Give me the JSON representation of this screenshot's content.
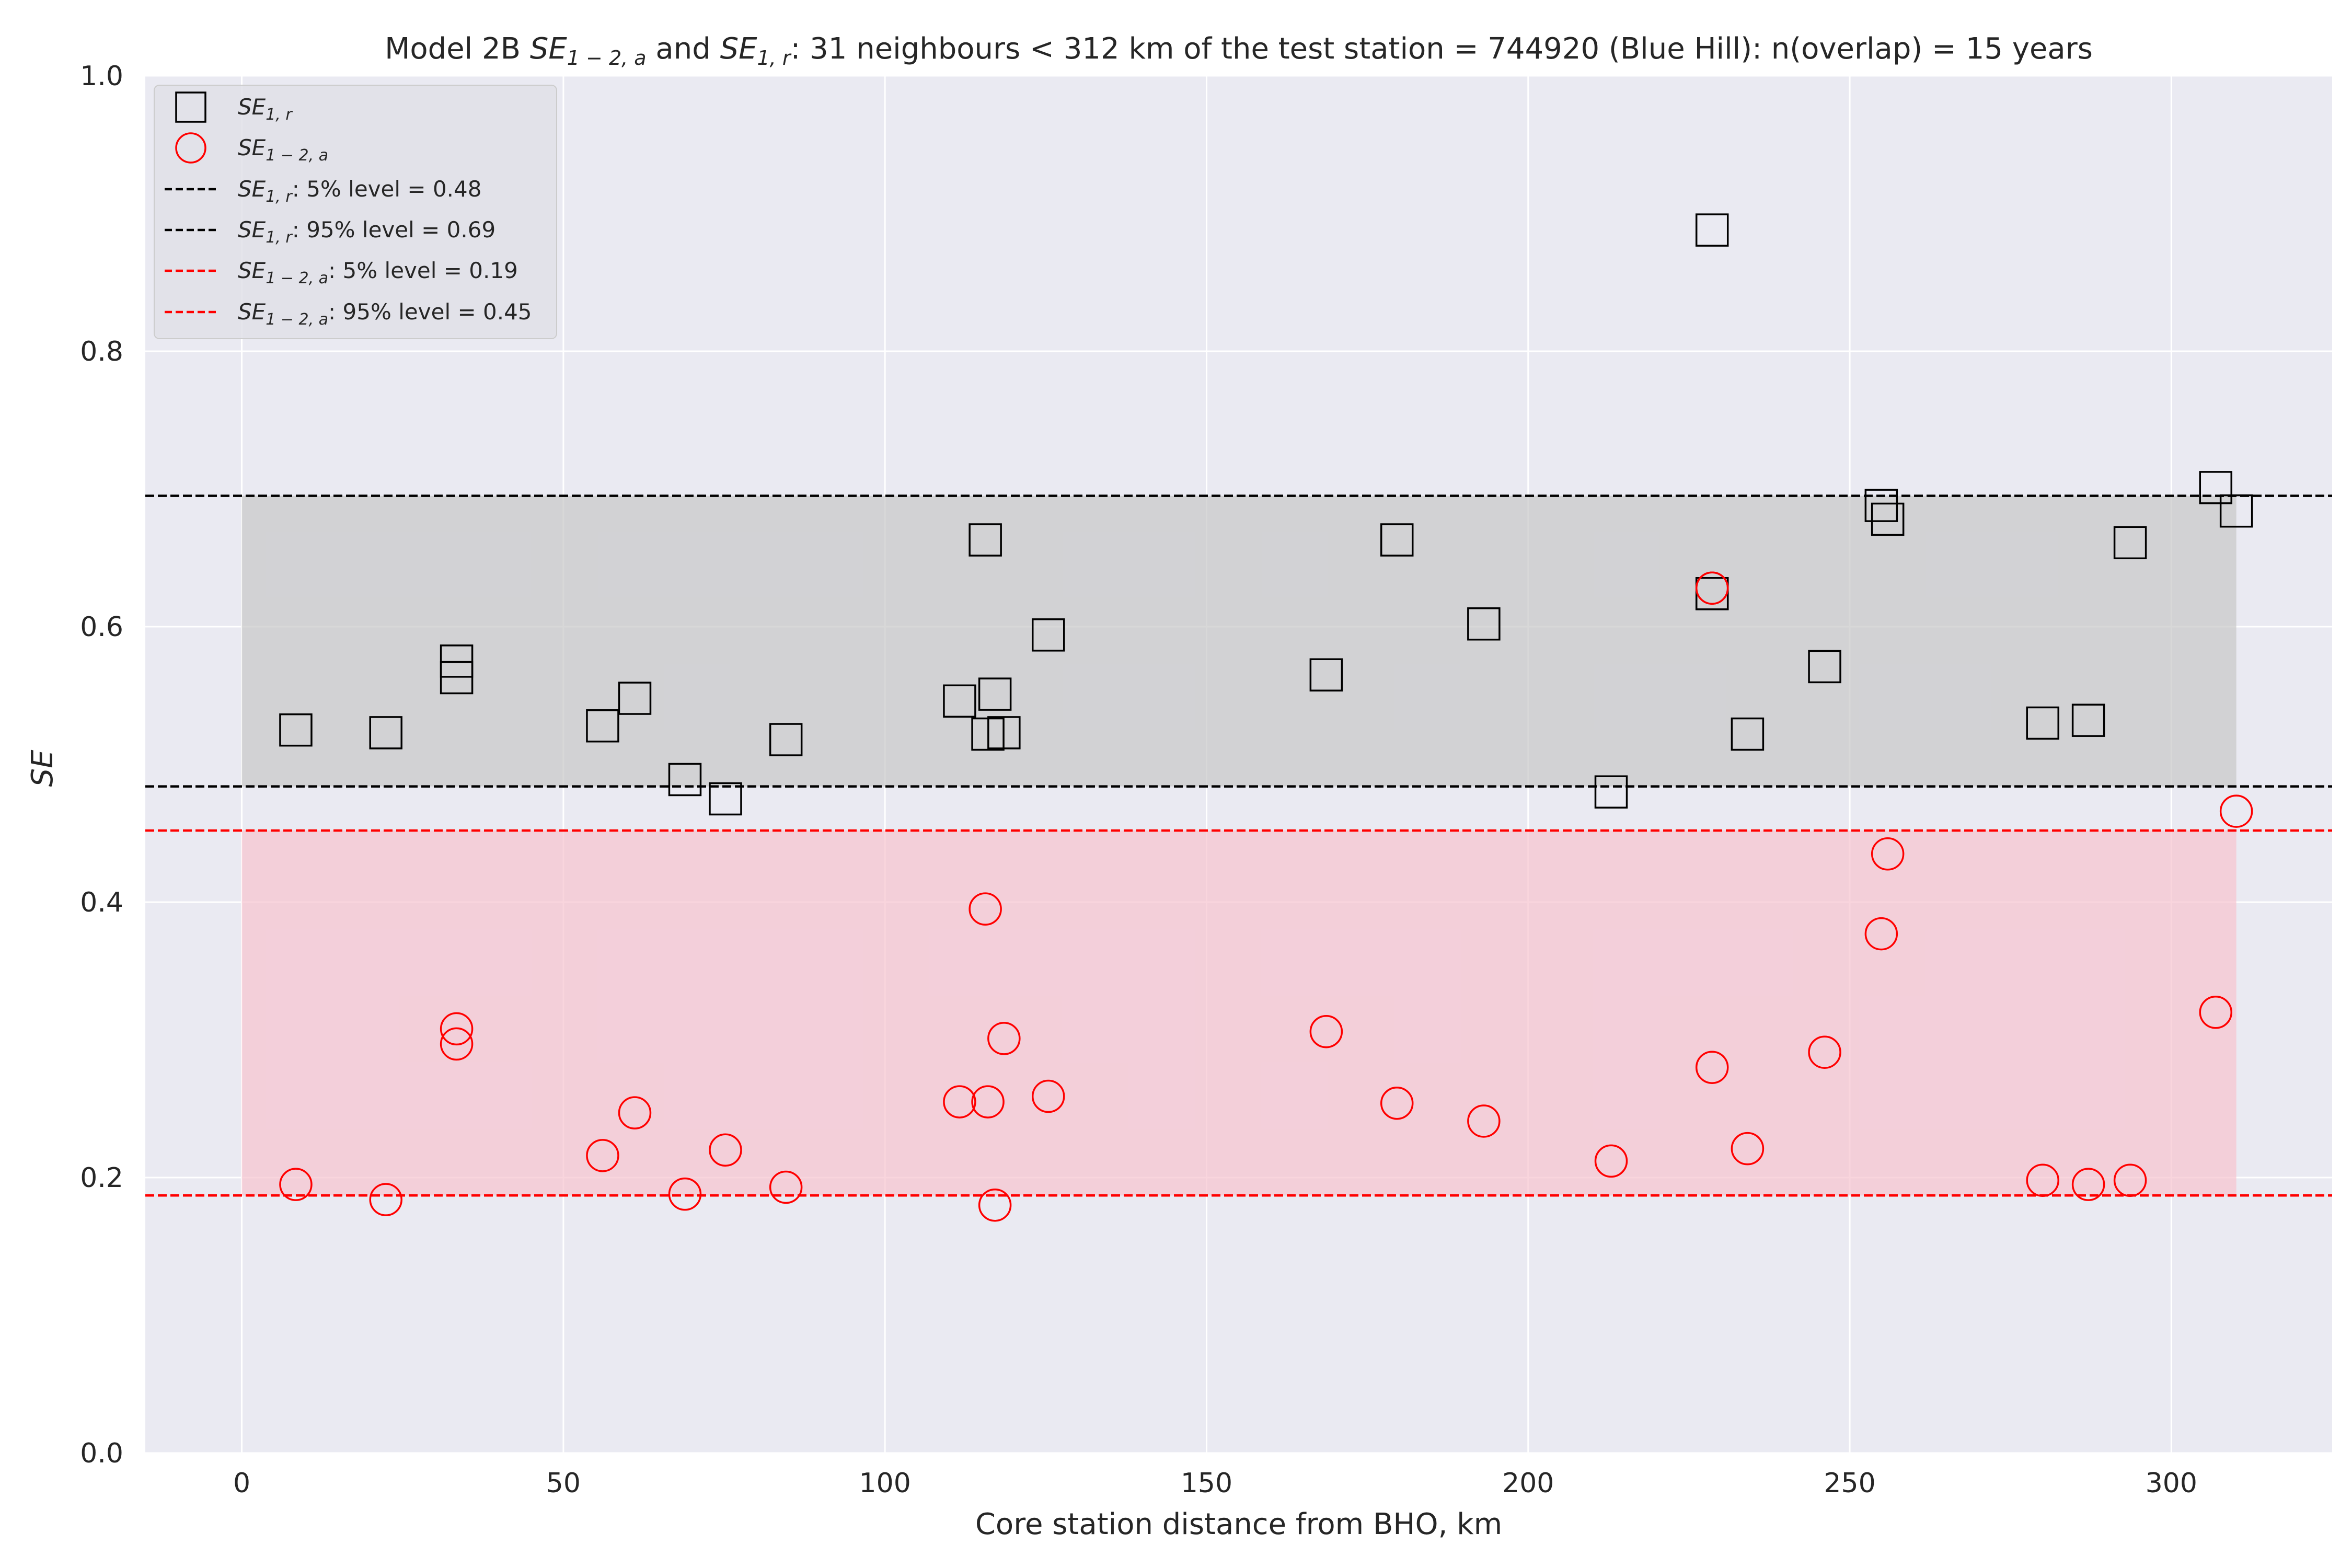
{
  "chart_data": {
    "type": "scatter",
    "title_parts": {
      "prefix": "Model 2B ",
      "sym1_base": "SE",
      "sym1_sub": "1 − 2, a",
      "mid": " and ",
      "sym2_base": "SE",
      "sym2_sub": "1, r",
      "suffix": ": 31 neighbours < 312 km of the test station = 744920 (Blue Hill): n(overlap) = 15 years"
    },
    "xlabel": "Core station distance from BHO, km",
    "ylabel": "SE",
    "xlim": [
      -15,
      325
    ],
    "ylim": [
      0.0,
      1.0
    ],
    "xticks": [
      0,
      50,
      100,
      150,
      200,
      250,
      300
    ],
    "yticks": [
      0.0,
      0.2,
      0.4,
      0.6,
      0.8,
      1.0
    ],
    "xtick_labels": [
      "0",
      "50",
      "100",
      "150",
      "200",
      "250",
      "300"
    ],
    "ytick_labels": [
      "0.0",
      "0.2",
      "0.4",
      "0.6",
      "0.8",
      "1.0"
    ],
    "grid": true,
    "legend_position": "top-left",
    "colors": {
      "plot_background": "#eaeaf2",
      "grid": "#ffffff",
      "se_r": "#000000",
      "se_a": "#ff0000",
      "band_r": "#c8c8c8",
      "band_a": "#f7c3cf"
    },
    "x": [
      8.4,
      22.4,
      33.4,
      33.4,
      56.1,
      61.1,
      68.9,
      75.2,
      84.6,
      111.6,
      115.6,
      116.0,
      117.1,
      118.5,
      125.4,
      168.6,
      179.6,
      193.1,
      212.9,
      228.6,
      228.6,
      228.6,
      234.1,
      246.1,
      254.9,
      255.9,
      280.0,
      287.1,
      293.6,
      306.9,
      310.1
    ],
    "series": [
      {
        "name_base": "SE",
        "name_sub": "1, r",
        "marker": "square",
        "color": "#000000",
        "values": [
          0.525,
          0.523,
          0.575,
          0.563,
          0.528,
          0.548,
          0.489,
          0.475,
          0.518,
          0.546,
          0.663,
          0.522,
          0.551,
          0.523,
          0.594,
          0.565,
          0.663,
          0.602,
          0.48,
          0.888,
          0.624,
          0.624,
          0.522,
          0.571,
          0.688,
          0.678,
          0.53,
          0.532,
          0.661,
          0.701,
          0.684
        ]
      },
      {
        "name_base": "SE",
        "name_sub": "1 − 2, a",
        "marker": "circle",
        "color": "#ff0000",
        "values": [
          0.195,
          0.184,
          0.308,
          0.297,
          0.216,
          0.247,
          0.188,
          0.22,
          0.193,
          0.255,
          0.395,
          0.255,
          0.18,
          0.301,
          0.259,
          0.306,
          0.254,
          0.241,
          0.212,
          0.628,
          0.28,
          0.628,
          0.221,
          0.291,
          0.377,
          0.435,
          0.198,
          0.195,
          0.198,
          0.32,
          0.466
        ]
      }
    ],
    "reference_lines": [
      {
        "label_base": "SE",
        "label_sub": "1, r",
        "label_text": ": 5% level = 0.48",
        "y": 0.484,
        "color": "#000000"
      },
      {
        "label_base": "SE",
        "label_sub": "1, r",
        "label_text": ": 95% level = 0.69",
        "y": 0.695,
        "color": "#000000"
      },
      {
        "label_base": "SE",
        "label_sub": "1 − 2, a",
        "label_text": ": 5% level = 0.19",
        "y": 0.187,
        "color": "#ff0000"
      },
      {
        "label_base": "SE",
        "label_sub": "1 − 2, a",
        "label_text": ": 95% level = 0.45",
        "y": 0.452,
        "color": "#ff0000"
      }
    ],
    "shaded_bands": [
      {
        "x_range": [
          0,
          310.1
        ],
        "y_range": [
          0.484,
          0.695
        ],
        "color": "#c8c8c8"
      },
      {
        "x_range": [
          0,
          310.1
        ],
        "y_range": [
          0.187,
          0.452
        ],
        "color": "#f7c3cf"
      }
    ]
  }
}
